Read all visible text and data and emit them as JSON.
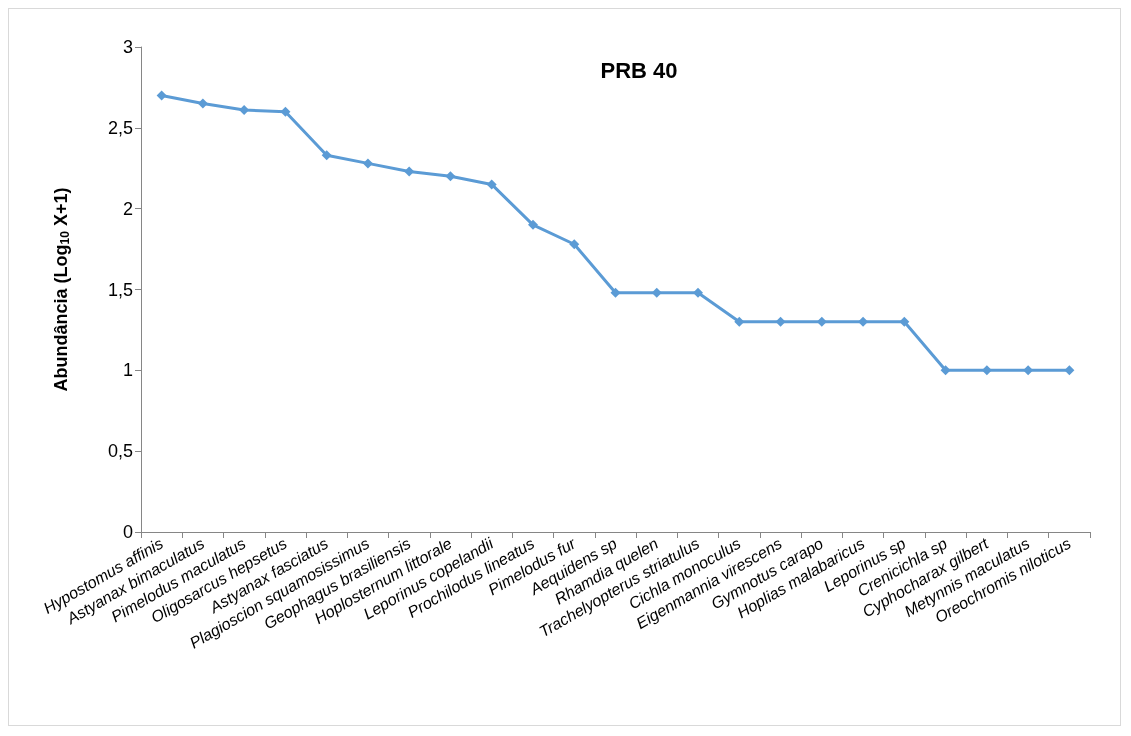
{
  "chart_data": {
    "type": "line",
    "title": "PRB 40",
    "ylabel": "Abundância (Log$_{10}$ X+1)",
    "categories": [
      "Hypostomus affinis",
      "Astyanax bimaculatus",
      "Pimelodus maculatus",
      "Oligosarcus hepsetus",
      "Astyanax fasciatus",
      "Plagioscion squamosissimus",
      "Geophagus brasiliensis",
      "Hoplosternum littorale",
      "Leporinus copelandii",
      "Prochilodus lineatus",
      "Pimelodus fur",
      "Aequidens sp",
      "Rhamdia quelen",
      "Trachelyopterus striatulus",
      "Cichla monoculus",
      "Eigenmannia virescens",
      "Gymnotus carapo",
      "Hoplias malabaricus",
      "Leporinus sp",
      "Crenicichla sp",
      "Cyphocharax gilbert",
      "Metynnis maculatus",
      "Oreochromis niloticus"
    ],
    "series": [
      {
        "color": "#5b9bd5",
        "values": [
          2.7,
          2.65,
          2.61,
          2.6,
          2.33,
          2.28,
          2.23,
          2.2,
          2.15,
          1.9,
          1.78,
          1.48,
          1.48,
          1.48,
          1.3,
          1.3,
          1.3,
          1.3,
          1.3,
          1.0,
          1.0,
          1.0,
          1.0
        ]
      }
    ],
    "ylim": [
      0,
      3
    ],
    "yticks": [
      0,
      {
        "value": 0.5,
        "label": "0,5"
      },
      1,
      {
        "value": 1.5,
        "label": "1,5"
      },
      2,
      {
        "value": 2.5,
        "label": "2,5"
      },
      3
    ],
    "marker": "diamond",
    "line_style": "solid"
  }
}
